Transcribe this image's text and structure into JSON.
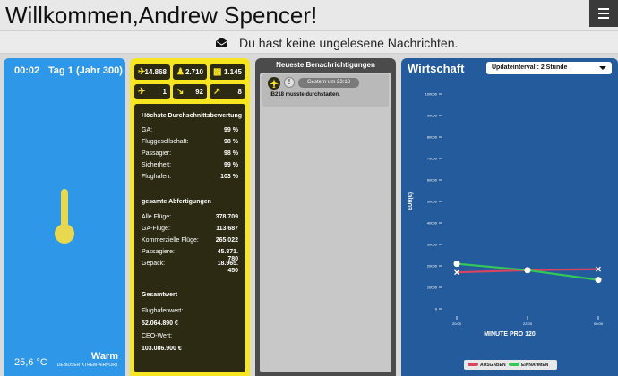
{
  "header": {
    "title": "Willkommen,Andrew Spencer!"
  },
  "messages": {
    "text": "Du hast keine ungelesene Nachrichten."
  },
  "weather": {
    "time": "00:02",
    "day": "Tag 1 (Jahr 300)",
    "temperature": "25,6 °C",
    "condition": "Warm",
    "airport": "DEBIDSER XTREM-AIRPORT"
  },
  "stats": {
    "badges": [
      {
        "icon": "pax-icon",
        "value": "14.868"
      },
      {
        "icon": "people-icon",
        "value": "2.710"
      },
      {
        "icon": "luggage-icon",
        "value": "1.145"
      },
      {
        "icon": "plane-icon",
        "value": "1"
      },
      {
        "icon": "landing-icon",
        "value": "92"
      },
      {
        "icon": "takeoff-icon",
        "value": "8"
      }
    ],
    "rating_title": "Höchste Durchschnittsbewertung",
    "ratings": [
      {
        "label": "GA:",
        "value": "99 %"
      },
      {
        "label": "Fluggesellschaft:",
        "value": "98 %"
      },
      {
        "label": "Passagier:",
        "value": "98 %"
      },
      {
        "label": "Sicherheit:",
        "value": "99 %"
      },
      {
        "label": "Flughafen:",
        "value": "103 %"
      }
    ],
    "handling_title": "gesamte Abfertigungen",
    "handling": [
      {
        "label": "Alle Flüge:",
        "value": "378.709"
      },
      {
        "label": "GA-Flüge:",
        "value": "113.687"
      },
      {
        "label": "Kommerzielle Flüge:",
        "value": "265.022"
      },
      {
        "label": "Passagiere:",
        "value": "45.871.780"
      },
      {
        "label": "Gepäck:",
        "value": "18.965.450"
      }
    ],
    "total_title": "Gesamtwert",
    "airport_value_label": "Flughafenwert:",
    "airport_value": "52.064.890 €",
    "ceo_value_label": "CEO-Wert:",
    "ceo_value": "103.086.900 €"
  },
  "notifications": {
    "title": "Neueste Benachrichtigungen",
    "items": [
      {
        "when": "Gestern um 23:18",
        "message": "IB218 musste durchstarten."
      }
    ]
  },
  "economy": {
    "title": "Wirtschaft",
    "interval_select": "Updateintervall: 2 Stunde"
  },
  "colors": {
    "weather_bg": "#2f97e8",
    "stats_bg": "#f6e51f",
    "economy_bg": "#245b9c",
    "expenses": "#d9455f",
    "income": "#34c759"
  },
  "chart_data": {
    "type": "line",
    "ylabel": "EUR(€)",
    "xlabel": "MINUTE PRO 120",
    "x": [
      "20:00",
      "22:00",
      "00:00"
    ],
    "yticks": [
      "0",
      "10000",
      "20000",
      "30000",
      "40000",
      "50000",
      "60000",
      "70000",
      "80000",
      "90000",
      "100000"
    ],
    "ylim": [
      0,
      100000
    ],
    "series": [
      {
        "name": "AUSGABEN",
        "color": "#d9455f",
        "values": [
          17000,
          18000,
          18500
        ]
      },
      {
        "name": "EINNAHMEN",
        "color": "#34c759",
        "values": [
          21000,
          18000,
          13500
        ]
      }
    ],
    "legend": "bottom"
  }
}
